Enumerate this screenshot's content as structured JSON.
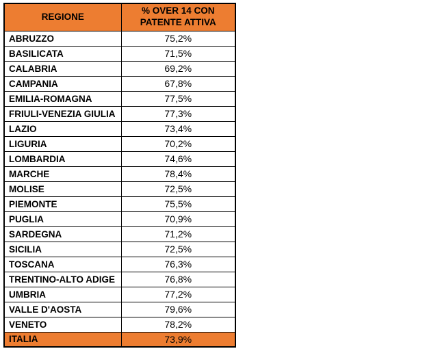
{
  "colors": {
    "accent_orange": "#ED7D31",
    "border": "#000000",
    "text": "#000000",
    "page_background": "#ffffff"
  },
  "table": {
    "headers": [
      "REGIONE",
      "% OVER 14 CON PATENTE ATTIVA"
    ],
    "rows": [
      {
        "regione": "ABRUZZO",
        "valore": "75,2%"
      },
      {
        "regione": "BASILICATA",
        "valore": "71,5%"
      },
      {
        "regione": "CALABRIA",
        "valore": "69,2%"
      },
      {
        "regione": "CAMPANIA",
        "valore": "67,8%"
      },
      {
        "regione": "EMILIA-ROMAGNA",
        "valore": "77,5%"
      },
      {
        "regione": "FRIULI-VENEZIA GIULIA",
        "valore": "77,3%"
      },
      {
        "regione": "LAZIO",
        "valore": "73,4%"
      },
      {
        "regione": "LIGURIA",
        "valore": "70,2%"
      },
      {
        "regione": "LOMBARDIA",
        "valore": "74,6%"
      },
      {
        "regione": "MARCHE",
        "valore": "78,4%"
      },
      {
        "regione": "MOLISE",
        "valore": "72,5%"
      },
      {
        "regione": "PIEMONTE",
        "valore": "75,5%"
      },
      {
        "regione": "PUGLIA",
        "valore": "70,9%"
      },
      {
        "regione": "SARDEGNA",
        "valore": "71,2%"
      },
      {
        "regione": "SICILIA",
        "valore": "72,5%"
      },
      {
        "regione": "TOSCANA",
        "valore": "76,3%"
      },
      {
        "regione": "TRENTINO-ALTO ADIGE",
        "valore": "76,8%"
      },
      {
        "regione": "UMBRIA",
        "valore": "77,2%"
      },
      {
        "regione": "VALLE D'AOSTA",
        "valore": "79,6%"
      },
      {
        "regione": "VENETO",
        "valore": "78,2%"
      }
    ],
    "total_row": {
      "label": "ITALIA",
      "value": "73,9%"
    }
  },
  "chart_data": {
    "type": "table",
    "columns": [
      "REGIONE",
      "% OVER 14 CON PATENTE ATTIVA"
    ],
    "rows": [
      [
        "ABRUZZO",
        75.2
      ],
      [
        "BASILICATA",
        71.5
      ],
      [
        "CALABRIA",
        69.2
      ],
      [
        "CAMPANIA",
        67.8
      ],
      [
        "EMILIA-ROMAGNA",
        77.5
      ],
      [
        "FRIULI-VENEZIA GIULIA",
        77.3
      ],
      [
        "LAZIO",
        73.4
      ],
      [
        "LIGURIA",
        70.2
      ],
      [
        "LOMBARDIA",
        74.6
      ],
      [
        "MARCHE",
        78.4
      ],
      [
        "MOLISE",
        72.5
      ],
      [
        "PIEMONTE",
        75.5
      ],
      [
        "PUGLIA",
        70.9
      ],
      [
        "SARDEGNA",
        71.2
      ],
      [
        "SICILIA",
        72.5
      ],
      [
        "TOSCANA",
        76.3
      ],
      [
        "TRENTINO-ALTO ADIGE",
        76.8
      ],
      [
        "UMBRIA",
        77.2
      ],
      [
        "VALLE D'AOSTA",
        79.6
      ],
      [
        "VENETO",
        78.2
      ],
      [
        "ITALIA",
        73.9
      ]
    ],
    "highlight_rows": [
      "ITALIA"
    ],
    "header_style": "orange-filled",
    "value_format": "percent-comma-decimal"
  }
}
